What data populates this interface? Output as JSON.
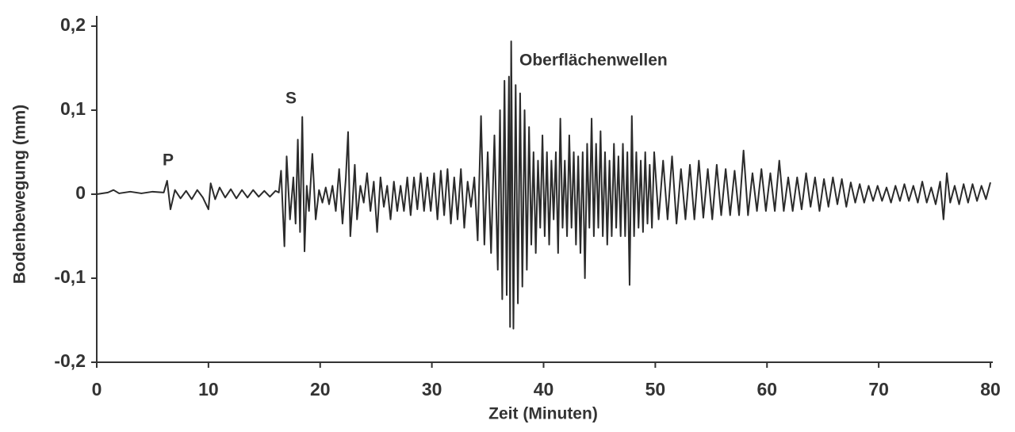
{
  "chart_data": {
    "type": "line",
    "xlabel": "Zeit (Minuten)",
    "ylabel": "Bodenbewegung (mm)",
    "annotations": [
      "P",
      "S",
      "Oberflächenwellen"
    ],
    "color": "#2b2b2b",
    "xlim": [
      0,
      80
    ],
    "xticks": [
      0,
      10,
      20,
      30,
      40,
      50,
      60,
      70,
      80
    ],
    "ylim": [
      -0.2,
      0.2
    ],
    "yticks": [
      {
        "value": -0.2,
        "label": "-0,2"
      },
      {
        "value": -0.1,
        "label": "-0,1"
      },
      0,
      {
        "value": 0.1,
        "label": "0,1"
      },
      {
        "value": 0.2,
        "label": "0,2"
      }
    ],
    "x": [
      0,
      1,
      1.5,
      2,
      3,
      4,
      5,
      6,
      6.3,
      6.6,
      7,
      7.5,
      8,
      8.5,
      9,
      9.5,
      10,
      10.2,
      10.6,
      11,
      11.5,
      12,
      12.5,
      13,
      13.5,
      14,
      14.5,
      15,
      15.5,
      16,
      16.3,
      16.5,
      16.8,
      17,
      17.3,
      17.6,
      17.8,
      18,
      18.2,
      18.4,
      18.6,
      18.8,
      19,
      19.3,
      19.6,
      19.9,
      20.2,
      20.5,
      20.8,
      21.1,
      21.4,
      21.7,
      22,
      22.3,
      22.5,
      22.7,
      22.9,
      23.1,
      23.3,
      23.6,
      23.9,
      24.2,
      24.5,
      24.8,
      25.1,
      25.4,
      25.7,
      26,
      26.3,
      26.6,
      26.9,
      27.2,
      27.5,
      27.8,
      28.1,
      28.4,
      28.7,
      29,
      29.3,
      29.6,
      29.9,
      30.2,
      30.5,
      30.8,
      31.1,
      31.4,
      31.7,
      32,
      32.3,
      32.6,
      32.9,
      33.2,
      33.5,
      33.8,
      34.1,
      34.4,
      34.7,
      35,
      35.3,
      35.6,
      35.9,
      36.1,
      36.3,
      36.5,
      36.7,
      36.9,
      37,
      37.1,
      37.3,
      37.5,
      37.7,
      37.9,
      38.1,
      38.3,
      38.5,
      38.7,
      38.9,
      39.1,
      39.3,
      39.5,
      39.7,
      39.9,
      40.1,
      40.3,
      40.5,
      40.7,
      40.9,
      41.1,
      41.3,
      41.5,
      41.7,
      41.9,
      42.1,
      42.3,
      42.5,
      42.7,
      42.9,
      43.1,
      43.3,
      43.5,
      43.7,
      43.9,
      44.1,
      44.3,
      44.5,
      44.7,
      44.9,
      45.1,
      45.3,
      45.5,
      45.7,
      45.9,
      46.1,
      46.3,
      46.5,
      46.7,
      46.9,
      47.1,
      47.3,
      47.5,
      47.7,
      47.9,
      48.1,
      48.3,
      48.5,
      48.7,
      48.9,
      49.1,
      49.3,
      49.5,
      49.7,
      49.9,
      50.3,
      50.7,
      51.1,
      51.5,
      51.9,
      52.3,
      52.7,
      53.1,
      53.5,
      53.9,
      54.3,
      54.7,
      55.1,
      55.5,
      55.9,
      56.3,
      56.7,
      57.1,
      57.5,
      57.9,
      58.3,
      58.7,
      59.1,
      59.5,
      59.9,
      60.3,
      60.7,
      61.1,
      61.5,
      61.9,
      62.3,
      62.7,
      63.1,
      63.5,
      63.9,
      64.3,
      64.7,
      65.1,
      65.5,
      65.9,
      66.3,
      66.7,
      67.1,
      67.5,
      67.9,
      68.3,
      68.7,
      69.1,
      69.5,
      69.9,
      70.3,
      70.7,
      71.1,
      71.5,
      71.9,
      72.3,
      72.7,
      73.1,
      73.5,
      73.9,
      74.3,
      74.7,
      75.1,
      75.5,
      75.8,
      76.1,
      76.4,
      76.8,
      77.2,
      77.6,
      78,
      78.4,
      78.8,
      79.2,
      79.6,
      80
    ],
    "values": [
      0,
      0.002,
      0.005,
      0.001,
      0.003,
      0.001,
      0.003,
      0.002,
      0.016,
      -0.018,
      0.005,
      -0.005,
      0.004,
      -0.006,
      0.005,
      -0.004,
      -0.018,
      0.013,
      -0.006,
      0.008,
      -0.004,
      0.006,
      -0.005,
      0.005,
      -0.004,
      0.005,
      -0.003,
      0.004,
      -0.003,
      0.004,
      0.002,
      0.028,
      -0.062,
      0.045,
      -0.03,
      0.02,
      -0.035,
      0.065,
      -0.045,
      0.092,
      -0.068,
      0.01,
      -0.02,
      0.048,
      -0.03,
      0.005,
      -0.01,
      0.008,
      -0.012,
      0.01,
      -0.02,
      0.03,
      -0.035,
      0.02,
      0.074,
      -0.05,
      -0.01,
      0.035,
      -0.03,
      0.01,
      -0.01,
      0.025,
      -0.02,
      0.015,
      -0.045,
      0.02,
      -0.015,
      0.01,
      -0.03,
      0.015,
      -0.02,
      0.01,
      -0.02,
      0.02,
      -0.025,
      0.02,
      -0.018,
      0.025,
      -0.02,
      0.02,
      -0.02,
      0.025,
      -0.03,
      0.028,
      -0.025,
      0.03,
      -0.035,
      0.02,
      -0.03,
      0.03,
      -0.04,
      0.015,
      -0.015,
      0.02,
      -0.055,
      0.093,
      -0.06,
      0.05,
      -0.07,
      0.07,
      -0.09,
      0.1,
      -0.125,
      0.135,
      -0.12,
      0.14,
      -0.158,
      0.182,
      -0.16,
      0.13,
      -0.13,
      0.12,
      -0.11,
      0.1,
      -0.09,
      0.08,
      -0.06,
      0.05,
      -0.07,
      0.04,
      -0.04,
      0.07,
      -0.05,
      0.05,
      -0.06,
      0.04,
      -0.03,
      0.05,
      -0.07,
      0.09,
      -0.04,
      0.04,
      -0.05,
      0.07,
      -0.04,
      0.05,
      -0.06,
      0.045,
      -0.07,
      0.05,
      -0.1,
      0.06,
      -0.04,
      0.09,
      -0.05,
      0.06,
      -0.04,
      0.075,
      -0.05,
      0.05,
      -0.06,
      0.04,
      -0.05,
      0.06,
      -0.04,
      0.045,
      -0.05,
      0.06,
      -0.05,
      0.05,
      -0.108,
      0.093,
      -0.05,
      0.05,
      -0.04,
      0.04,
      -0.045,
      0.05,
      -0.035,
      0.035,
      -0.04,
      0.05,
      -0.03,
      0.04,
      -0.03,
      0.045,
      -0.035,
      0.03,
      -0.03,
      0.035,
      -0.03,
      0.04,
      -0.028,
      0.03,
      -0.03,
      0.035,
      -0.025,
      0.03,
      -0.025,
      0.028,
      -0.025,
      0.052,
      -0.025,
      0.025,
      -0.02,
      0.03,
      -0.02,
      0.025,
      -0.02,
      0.04,
      -0.02,
      0.02,
      -0.02,
      0.02,
      -0.018,
      0.025,
      -0.015,
      0.02,
      -0.02,
      0.018,
      -0.015,
      0.02,
      -0.012,
      0.018,
      -0.015,
      0.014,
      -0.01,
      0.012,
      -0.01,
      0.01,
      -0.008,
      0.01,
      -0.008,
      0.008,
      -0.01,
      0.01,
      -0.008,
      0.012,
      -0.008,
      0.01,
      -0.01,
      0.015,
      -0.01,
      0.008,
      -0.012,
      0.015,
      -0.03,
      0.025,
      -0.01,
      0.01,
      -0.012,
      0.012,
      -0.01,
      0.012,
      -0.008,
      0.01,
      -0.006,
      0.014
    ]
  }
}
